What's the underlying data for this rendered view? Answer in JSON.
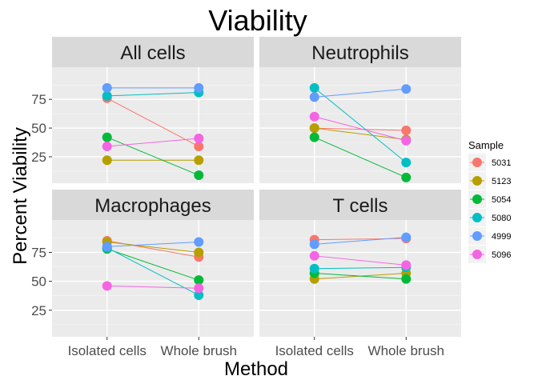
{
  "chart_data": {
    "type": "line",
    "title": "Viability",
    "xlabel": "Method",
    "ylabel": "Percent Viability",
    "categories": [
      "Isolated cells",
      "Whole brush"
    ],
    "ylim": [
      2,
      103
    ],
    "yticks": [
      25,
      50,
      75
    ],
    "grid": true,
    "legend": {
      "title": "Sample",
      "placement": "right",
      "entries": [
        {
          "name": "5031",
          "color": "#F8766D"
        },
        {
          "name": "5123",
          "color": "#B79F00"
        },
        {
          "name": "5054",
          "color": "#00BA38"
        },
        {
          "name": "5080",
          "color": "#00BFC4"
        },
        {
          "name": "4999",
          "color": "#619CFF"
        },
        {
          "name": "5096",
          "color": "#F564E3"
        }
      ]
    },
    "panels": [
      {
        "label": "All cells",
        "series": [
          {
            "name": "5031",
            "values": [
              76,
              34
            ]
          },
          {
            "name": "5123",
            "values": [
              22,
              22
            ]
          },
          {
            "name": "5054",
            "values": [
              42,
              9
            ]
          },
          {
            "name": "5080",
            "values": [
              78,
              81
            ]
          },
          {
            "name": "4999",
            "values": [
              85,
              85
            ]
          },
          {
            "name": "5096",
            "values": [
              34,
              41
            ]
          }
        ]
      },
      {
        "label": "Neutrophils",
        "series": [
          {
            "name": "5031",
            "values": [
              50,
              48
            ]
          },
          {
            "name": "5123",
            "values": [
              50,
              40
            ]
          },
          {
            "name": "5054",
            "values": [
              42,
              7
            ]
          },
          {
            "name": "5080",
            "values": [
              85,
              20
            ]
          },
          {
            "name": "4999",
            "values": [
              77,
              84
            ]
          },
          {
            "name": "5096",
            "values": [
              60,
              39
            ]
          }
        ]
      },
      {
        "label": "Macrophages",
        "series": [
          {
            "name": "5031",
            "values": [
              85,
              71
            ]
          },
          {
            "name": "5123",
            "values": [
              84,
              75
            ]
          },
          {
            "name": "5054",
            "values": [
              78,
              51
            ]
          },
          {
            "name": "5080",
            "values": [
              79,
              38
            ]
          },
          {
            "name": "4999",
            "values": [
              80,
              84
            ]
          },
          {
            "name": "5096",
            "values": [
              46,
              44
            ]
          }
        ]
      },
      {
        "label": "T cells",
        "series": [
          {
            "name": "5031",
            "values": [
              86,
              87
            ]
          },
          {
            "name": "5123",
            "values": [
              52,
              57
            ]
          },
          {
            "name": "5054",
            "values": [
              57,
              52
            ]
          },
          {
            "name": "5080",
            "values": [
              61,
              62
            ]
          },
          {
            "name": "4999",
            "values": [
              82,
              88
            ]
          },
          {
            "name": "5096",
            "values": [
              72,
              64
            ]
          }
        ]
      }
    ]
  }
}
